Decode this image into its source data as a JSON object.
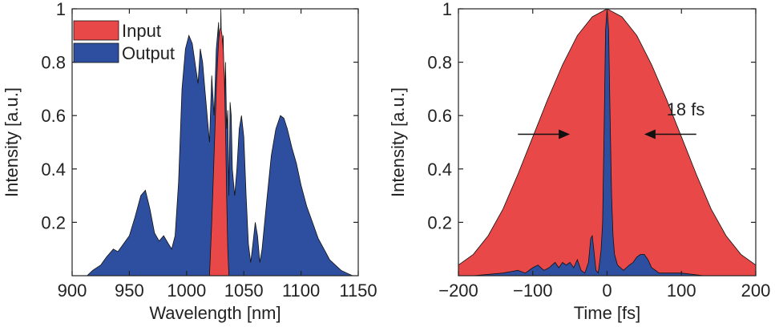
{
  "colors": {
    "input": "#e84848",
    "output": "#2e4f9f",
    "axis": "#222222",
    "outline": "#111111"
  },
  "chart_data": [
    {
      "type": "area",
      "xlabel": "Wavelength [nm]",
      "ylabel": "Intensity [a.u.]",
      "xlim": [
        900,
        1150
      ],
      "ylim": [
        0,
        1
      ],
      "xticks": [
        900,
        950,
        1000,
        1050,
        1100,
        1150
      ],
      "yticks": [
        0.2,
        0.4,
        0.6,
        0.8,
        1
      ],
      "xtick_labels": [
        "900",
        "950",
        "1000",
        "1050",
        "1100",
        "1150"
      ],
      "ytick_labels": [
        "0.2",
        "0.4",
        "0.6",
        "0.8",
        "1"
      ],
      "legend": {
        "position": "top-left",
        "entries": [
          "Input",
          "Output"
        ]
      },
      "series": [
        {
          "name": "Output",
          "color": "#2e4f9f",
          "x": [
            913,
            918,
            925,
            930,
            936,
            940,
            945,
            950,
            955,
            960,
            964,
            968,
            972,
            976,
            980,
            984,
            987,
            990,
            993,
            996,
            999,
            1002,
            1005,
            1008,
            1010,
            1012,
            1014,
            1016,
            1018,
            1020,
            1022,
            1024,
            1026,
            1028,
            1029,
            1030,
            1031,
            1032,
            1033,
            1034,
            1035,
            1036,
            1037,
            1038,
            1039,
            1040,
            1042,
            1044,
            1046,
            1048,
            1050,
            1052,
            1054,
            1056,
            1058,
            1060,
            1062,
            1064,
            1066,
            1070,
            1074,
            1078,
            1082,
            1085,
            1088,
            1092,
            1096,
            1100,
            1105,
            1110,
            1115,
            1120,
            1125,
            1130,
            1135,
            1140,
            1145,
            1148
          ],
          "y": [
            0.0,
            0.02,
            0.04,
            0.07,
            0.1,
            0.09,
            0.12,
            0.15,
            0.22,
            0.3,
            0.32,
            0.25,
            0.16,
            0.13,
            0.15,
            0.12,
            0.1,
            0.15,
            0.35,
            0.7,
            0.85,
            0.9,
            0.87,
            0.78,
            0.72,
            0.85,
            0.8,
            0.7,
            0.6,
            0.5,
            0.75,
            0.6,
            0.85,
            0.95,
            0.7,
            1.0,
            0.7,
            0.9,
            0.6,
            0.8,
            0.55,
            0.62,
            0.3,
            0.65,
            0.6,
            0.4,
            0.3,
            0.4,
            0.55,
            0.6,
            0.52,
            0.3,
            0.12,
            0.05,
            0.12,
            0.2,
            0.15,
            0.05,
            0.1,
            0.28,
            0.45,
            0.55,
            0.6,
            0.59,
            0.55,
            0.48,
            0.42,
            0.34,
            0.26,
            0.2,
            0.14,
            0.1,
            0.06,
            0.04,
            0.02,
            0.01,
            0.0,
            0.0
          ]
        },
        {
          "name": "Input",
          "color": "#e84848",
          "x": [
            1020,
            1022,
            1024,
            1026,
            1027,
            1028,
            1029,
            1030,
            1031,
            1032,
            1033,
            1034,
            1035,
            1036,
            1037
          ],
          "y": [
            0.0,
            0.2,
            0.45,
            0.7,
            0.8,
            0.88,
            0.92,
            0.93,
            0.9,
            0.85,
            0.75,
            0.55,
            0.3,
            0.1,
            0.0
          ]
        }
      ]
    },
    {
      "type": "area",
      "xlabel": "Time [fs]",
      "ylabel": "Intensity [a.u.]",
      "xlim": [
        -200,
        200
      ],
      "ylim": [
        0,
        1
      ],
      "xticks": [
        -200,
        -100,
        0,
        100,
        200
      ],
      "yticks": [
        0.2,
        0.4,
        0.6,
        0.8,
        1
      ],
      "xtick_labels": [
        "−200",
        "−100",
        "0",
        "100",
        "200"
      ],
      "ytick_labels": [
        "0.2",
        "0.4",
        "0.6",
        "0.8",
        "1"
      ],
      "annotation": {
        "text": "18 fs",
        "left_arrow_x": [
          -120,
          -50
        ],
        "right_arrow_x": [
          50,
          120
        ],
        "arrow_y": 0.53,
        "text_x": 80,
        "text_y": 0.6
      },
      "series": [
        {
          "name": "Input",
          "color": "#e84848",
          "x": [
            -200,
            -180,
            -160,
            -140,
            -120,
            -100,
            -80,
            -60,
            -40,
            -20,
            0,
            20,
            40,
            60,
            80,
            100,
            120,
            140,
            160,
            180,
            200
          ],
          "y": [
            0.04,
            0.08,
            0.15,
            0.25,
            0.38,
            0.52,
            0.66,
            0.79,
            0.9,
            0.97,
            1.0,
            0.97,
            0.9,
            0.79,
            0.66,
            0.52,
            0.38,
            0.25,
            0.15,
            0.08,
            0.04
          ]
        },
        {
          "name": "Output",
          "color": "#2e4f9f",
          "x": [
            -180,
            -140,
            -120,
            -110,
            -100,
            -93,
            -85,
            -78,
            -70,
            -65,
            -60,
            -55,
            -50,
            -45,
            -40,
            -35,
            -30,
            -25,
            -22,
            -20,
            -18,
            -15,
            -12,
            -10,
            -8,
            -6,
            -4,
            -2,
            0,
            2,
            4,
            6,
            8,
            10,
            14,
            18,
            22,
            26,
            30,
            35,
            40,
            45,
            50,
            55,
            60,
            65,
            70,
            80,
            100,
            130,
            180
          ],
          "y": [
            0.0,
            0.01,
            0.02,
            0.01,
            0.03,
            0.04,
            0.02,
            0.03,
            0.05,
            0.03,
            0.05,
            0.04,
            0.05,
            0.03,
            0.06,
            0.02,
            0.01,
            0.05,
            0.14,
            0.15,
            0.1,
            0.02,
            0.01,
            0.05,
            0.1,
            0.2,
            0.55,
            0.92,
            1.0,
            0.92,
            0.6,
            0.3,
            0.15,
            0.08,
            0.04,
            0.03,
            0.02,
            0.03,
            0.04,
            0.05,
            0.07,
            0.08,
            0.08,
            0.06,
            0.03,
            0.02,
            0.01,
            0.01,
            0.01,
            0.0,
            0.0
          ]
        }
      ]
    }
  ]
}
